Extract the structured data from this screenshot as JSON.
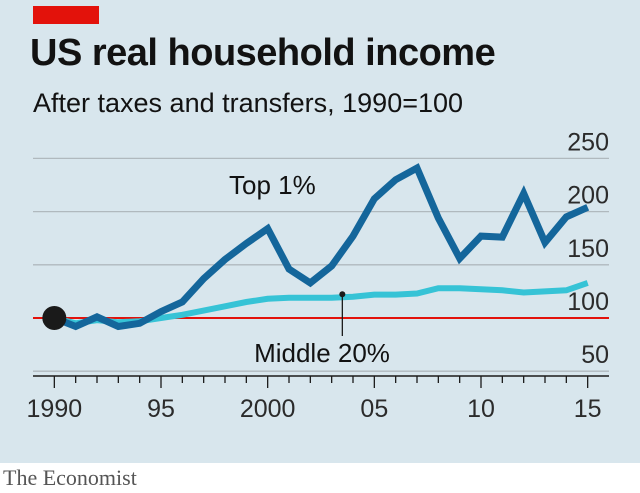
{
  "header": {
    "title": "US real household income",
    "subtitle": "After taxes and transfers, 1990=100"
  },
  "footer": {
    "source": "The Economist"
  },
  "colors": {
    "background": "#d8e6ed",
    "top1": "#14669b",
    "middle20": "#36c3d6",
    "baseline": "#e3120b",
    "brand_tag": "#e3120b",
    "gridline": "#b0b9be",
    "marker": "#1a1a1a"
  },
  "chart_data": {
    "type": "line",
    "title": "US real household income",
    "subtitle": "After taxes and transfers, 1990=100",
    "xlabel": "",
    "ylabel": "",
    "xlim": [
      1989,
      2016
    ],
    "ylim": [
      50,
      250
    ],
    "y_axis_side": "right",
    "grid": "horizontal",
    "x_ticks": [
      1990,
      1995,
      2000,
      2005,
      2010,
      2015
    ],
    "x_tick_labels": [
      "1990",
      "95",
      "2000",
      "05",
      "10",
      "15"
    ],
    "y_ticks": [
      50,
      100,
      150,
      200,
      250
    ],
    "y_tick_labels": [
      "50",
      "100",
      "150",
      "200",
      "250"
    ],
    "baseline": 100,
    "start_marker": {
      "x": 1990,
      "y": 100
    },
    "x": [
      1990,
      1991,
      1992,
      1993,
      1994,
      1995,
      1996,
      1997,
      1998,
      1999,
      2000,
      2001,
      2002,
      2003,
      2004,
      2005,
      2006,
      2007,
      2008,
      2009,
      2010,
      2011,
      2012,
      2013,
      2014,
      2015
    ],
    "series": [
      {
        "name": "Top 1%",
        "values": [
          100,
          92,
          101,
          92,
          95,
          106,
          115,
          137,
          155,
          170,
          184,
          146,
          133,
          149,
          177,
          212,
          230,
          241,
          194,
          156,
          177,
          176,
          217,
          171,
          195,
          204
        ]
      },
      {
        "name": "Middle 20%",
        "values": [
          100,
          95,
          98,
          96,
          97,
          100,
          103,
          107,
          111,
          115,
          118,
          119,
          119,
          119,
          120,
          122,
          122,
          123,
          128,
          128,
          127,
          126,
          124,
          125,
          126,
          133
        ]
      }
    ],
    "annotations": [
      {
        "text": "Top 1%",
        "series": "Top 1%"
      },
      {
        "text": "Middle 20%",
        "series": "Middle 20%",
        "pointer_x": 2003.5
      }
    ]
  }
}
